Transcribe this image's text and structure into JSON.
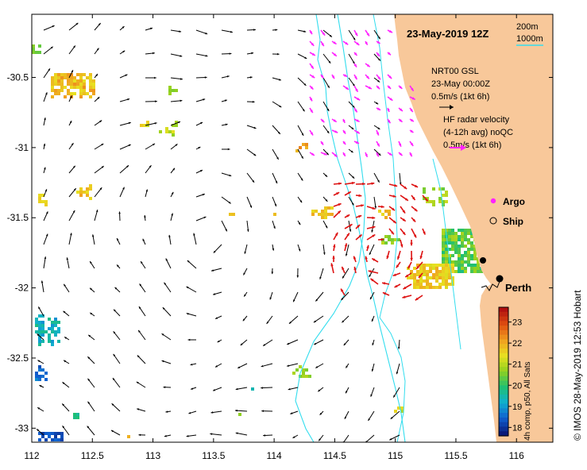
{
  "title": "23-May-2019 12Z",
  "scale_labels": {
    "inner_isobath": "200m",
    "outer_isobath": "1000m"
  },
  "model_legend": {
    "line1": "NRT00 GSL",
    "line2": "23-May 00:00Z",
    "line3": "0.5m/s (1kt 6h)"
  },
  "radar_legend": {
    "line1": "HF radar velocity",
    "line2": "(4-12h avg) noQC",
    "line3": "0.5m/s (1kt 6h)"
  },
  "markers": {
    "argo": "Argo",
    "ship": "Ship"
  },
  "place": "Perth",
  "colorbar": {
    "label": "4h comp, p50, All Sats",
    "ticks": [
      "23",
      "22",
      "21",
      "20",
      "19",
      "18"
    ],
    "range": [
      17.6,
      23.7
    ]
  },
  "credit": "© IMOS 28-May-2019 12:53 Hobart",
  "axes": {
    "lon_range": [
      112,
      116.3
    ],
    "lat_range": [
      -33.1,
      -30.05
    ],
    "lon_ticks": [
      "112",
      "112.5",
      "113",
      "113.5",
      "114",
      "114.5",
      "115",
      "115.5",
      "116"
    ],
    "lat_ticks": [
      "-30.5",
      "-31",
      "-31.5",
      "-32",
      "-32.5",
      "-33"
    ]
  },
  "colors": {
    "land": "#f8c89a",
    "isobath": "#33ddee",
    "model_arrows": "#000000",
    "radar_arrows": "#dd1111",
    "argo": "#ff22ff"
  },
  "colorbar_stops": [
    "#0a1a7a",
    "#1060d0",
    "#10b0d0",
    "#20c070",
    "#90d020",
    "#e8e020",
    "#f0a020",
    "#e05010",
    "#b01010"
  ]
}
